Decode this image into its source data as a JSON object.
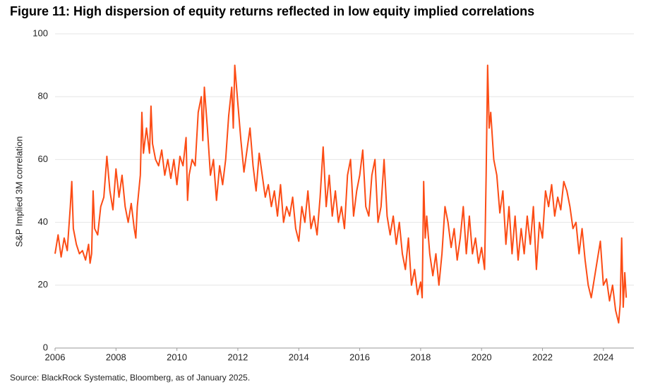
{
  "chart_data": {
    "type": "line",
    "title": "Figure 11: High dispersion of equity returns reflected in low equity implied correlations",
    "y_label": "S&P Implied 3M correlation",
    "source": "Source: BlackRock Systematic, Bloomberg, as of January 2025.",
    "xlim": [
      2006,
      2025
    ],
    "xticks": [
      2006,
      2008,
      2010,
      2012,
      2014,
      2016,
      2018,
      2020,
      2022,
      2024
    ],
    "ylim": [
      0,
      100
    ],
    "yticks": [
      0,
      20,
      40,
      60,
      80,
      100
    ],
    "grid": true,
    "series": [
      {
        "name": "S&P Implied 3M correlation",
        "color": "#fc4c15",
        "x": [
          2006.0,
          2006.1,
          2006.2,
          2006.3,
          2006.4,
          2006.5,
          2006.55,
          2006.6,
          2006.7,
          2006.8,
          2006.9,
          2007.0,
          2007.1,
          2007.15,
          2007.2,
          2007.25,
          2007.3,
          2007.4,
          2007.5,
          2007.6,
          2007.7,
          2007.8,
          2007.9,
          2008.0,
          2008.1,
          2008.2,
          2008.3,
          2008.4,
          2008.5,
          2008.6,
          2008.65,
          2008.7,
          2008.8,
          2008.85,
          2008.9,
          2009.0,
          2009.1,
          2009.15,
          2009.2,
          2009.3,
          2009.4,
          2009.5,
          2009.6,
          2009.7,
          2009.8,
          2009.9,
          2010.0,
          2010.1,
          2010.2,
          2010.3,
          2010.35,
          2010.4,
          2010.5,
          2010.6,
          2010.7,
          2010.8,
          2010.85,
          2010.9,
          2011.0,
          2011.1,
          2011.2,
          2011.3,
          2011.4,
          2011.5,
          2011.6,
          2011.7,
          2011.8,
          2011.85,
          2011.9,
          2012.0,
          2012.1,
          2012.2,
          2012.3,
          2012.4,
          2012.5,
          2012.6,
          2012.7,
          2012.8,
          2012.9,
          2013.0,
          2013.1,
          2013.2,
          2013.3,
          2013.4,
          2013.5,
          2013.6,
          2013.7,
          2013.8,
          2013.9,
          2014.0,
          2014.1,
          2014.2,
          2014.3,
          2014.4,
          2014.5,
          2014.6,
          2014.7,
          2014.8,
          2014.9,
          2015.0,
          2015.1,
          2015.2,
          2015.3,
          2015.4,
          2015.5,
          2015.6,
          2015.7,
          2015.8,
          2015.9,
          2016.0,
          2016.1,
          2016.2,
          2016.3,
          2016.4,
          2016.5,
          2016.6,
          2016.7,
          2016.8,
          2016.9,
          2017.0,
          2017.1,
          2017.2,
          2017.3,
          2017.4,
          2017.5,
          2017.6,
          2017.7,
          2017.8,
          2017.9,
          2018.0,
          2018.05,
          2018.1,
          2018.15,
          2018.2,
          2018.3,
          2018.4,
          2018.5,
          2018.6,
          2018.7,
          2018.8,
          2018.9,
          2019.0,
          2019.1,
          2019.2,
          2019.3,
          2019.4,
          2019.5,
          2019.6,
          2019.7,
          2019.8,
          2019.9,
          2020.0,
          2020.1,
          2020.15,
          2020.2,
          2020.25,
          2020.3,
          2020.4,
          2020.5,
          2020.6,
          2020.7,
          2020.8,
          2020.9,
          2021.0,
          2021.1,
          2021.2,
          2021.3,
          2021.4,
          2021.5,
          2021.6,
          2021.7,
          2021.8,
          2021.9,
          2022.0,
          2022.1,
          2022.2,
          2022.3,
          2022.4,
          2022.5,
          2022.6,
          2022.7,
          2022.8,
          2022.9,
          2023.0,
          2023.1,
          2023.2,
          2023.3,
          2023.4,
          2023.5,
          2023.6,
          2023.7,
          2023.8,
          2023.9,
          2024.0,
          2024.1,
          2024.2,
          2024.3,
          2024.4,
          2024.5,
          2024.55,
          2024.6,
          2024.65,
          2024.7,
          2024.75
        ],
        "values": [
          30,
          36,
          29,
          35,
          31,
          45,
          53,
          38,
          33,
          30,
          31,
          28,
          33,
          27,
          30,
          50,
          38,
          36,
          45,
          48,
          61,
          50,
          44,
          57,
          48,
          55,
          45,
          40,
          46,
          38,
          35,
          45,
          55,
          75,
          62,
          70,
          62,
          77,
          65,
          60,
          58,
          63,
          55,
          60,
          54,
          60,
          52,
          61,
          58,
          67,
          47,
          55,
          60,
          58,
          75,
          80,
          66,
          83,
          70,
          55,
          60,
          47,
          58,
          52,
          60,
          74,
          83,
          70,
          90,
          78,
          66,
          56,
          63,
          70,
          58,
          50,
          62,
          55,
          48,
          52,
          45,
          50,
          42,
          52,
          40,
          45,
          42,
          48,
          38,
          34,
          45,
          40,
          50,
          38,
          42,
          36,
          48,
          64,
          45,
          55,
          42,
          50,
          40,
          45,
          38,
          55,
          60,
          42,
          50,
          55,
          63,
          45,
          42,
          55,
          60,
          40,
          45,
          60,
          42,
          36,
          42,
          33,
          40,
          30,
          25,
          35,
          20,
          25,
          17,
          21,
          16,
          53,
          35,
          42,
          30,
          23,
          30,
          20,
          30,
          45,
          40,
          32,
          38,
          28,
          35,
          45,
          30,
          42,
          30,
          35,
          27,
          32,
          25,
          55,
          90,
          70,
          75,
          60,
          55,
          43,
          50,
          33,
          45,
          30,
          42,
          28,
          38,
          30,
          42,
          33,
          45,
          25,
          40,
          35,
          50,
          45,
          52,
          42,
          48,
          44,
          53,
          50,
          45,
          38,
          40,
          30,
          38,
          28,
          20,
          16,
          22,
          28,
          34,
          20,
          22,
          15,
          20,
          12,
          8,
          14,
          35,
          13,
          24,
          16
        ]
      }
    ]
  }
}
